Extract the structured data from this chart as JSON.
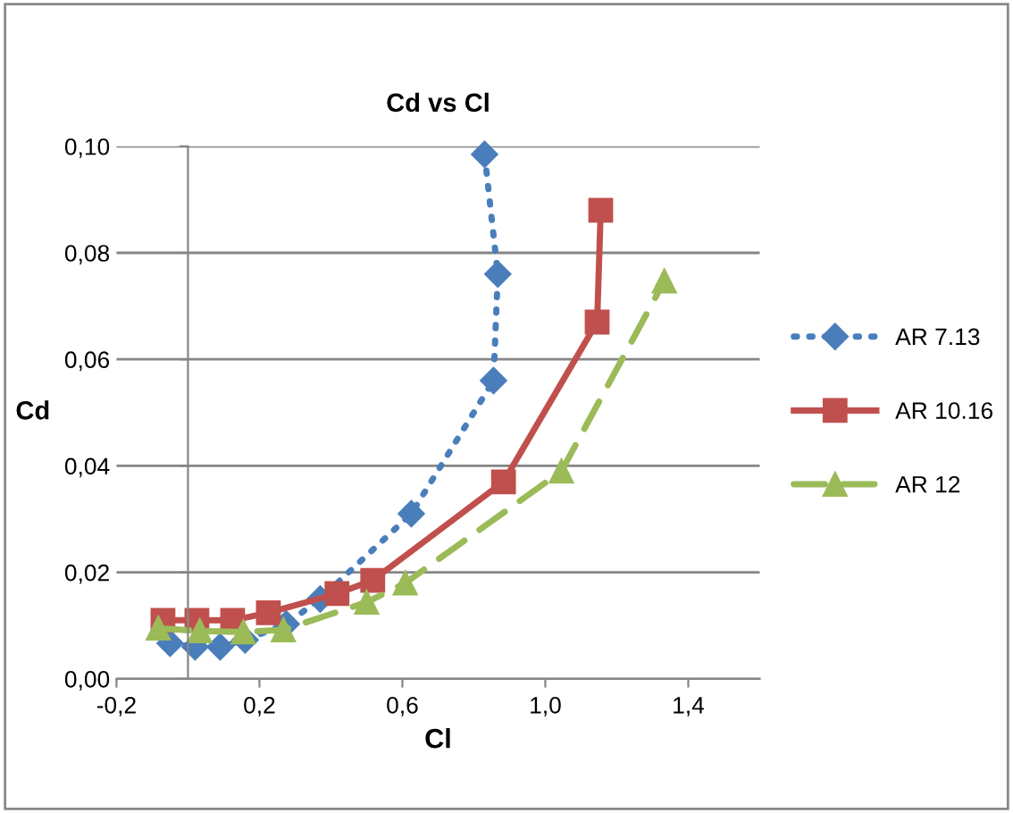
{
  "chart_data": {
    "type": "line",
    "title": "Cd vs Cl",
    "xlabel": "Cl",
    "ylabel": "Cd",
    "xlim": [
      -0.2,
      1.6
    ],
    "ylim": [
      0,
      0.1
    ],
    "xticks": [
      {
        "value": -0.2,
        "label": "-0,2"
      },
      {
        "value": 0.2,
        "label": "0,2"
      },
      {
        "value": 0.6,
        "label": "0,6"
      },
      {
        "value": 1.0,
        "label": "1,0"
      },
      {
        "value": 1.4,
        "label": "1,4"
      }
    ],
    "yticks": [
      {
        "value": 0,
        "label": "0,00"
      },
      {
        "value": 0.02,
        "label": "0,02"
      },
      {
        "value": 0.04,
        "label": "0,04"
      },
      {
        "value": 0.06,
        "label": "0,06"
      },
      {
        "value": 0.08,
        "label": "0,08"
      },
      {
        "value": 0.1,
        "label": "0,10"
      }
    ],
    "grid": "y",
    "legend": "right",
    "series": [
      {
        "name": "AR 7.13",
        "color": "#4a7ebb",
        "marker": "diamond",
        "line_style": "dotted",
        "x": [
          -0.05,
          0.02,
          0.09,
          0.16,
          0.275,
          0.37,
          0.625,
          0.855,
          0.867,
          0.83
        ],
        "values": [
          0.0067,
          0.006,
          0.006,
          0.0073,
          0.0103,
          0.015,
          0.031,
          0.056,
          0.076,
          0.0985
        ]
      },
      {
        "name": "AR 10.16",
        "color": "#c0504d",
        "marker": "square",
        "line_style": "solid",
        "x": [
          -0.07,
          0.025,
          0.125,
          0.225,
          0.417,
          0.517,
          0.883,
          1.145,
          1.155
        ],
        "values": [
          0.011,
          0.011,
          0.011,
          0.0124,
          0.016,
          0.0185,
          0.037,
          0.067,
          0.088
        ]
      },
      {
        "name": "AR 12",
        "color": "#9bbb59",
        "marker": "triangle",
        "line_style": "dashed",
        "x": [
          -0.083,
          0.033,
          0.155,
          0.267,
          0.5,
          0.608,
          1.045,
          1.333
        ],
        "values": [
          0.0095,
          0.009,
          0.0088,
          0.0092,
          0.0144,
          0.018,
          0.039,
          0.0747
        ]
      }
    ]
  }
}
